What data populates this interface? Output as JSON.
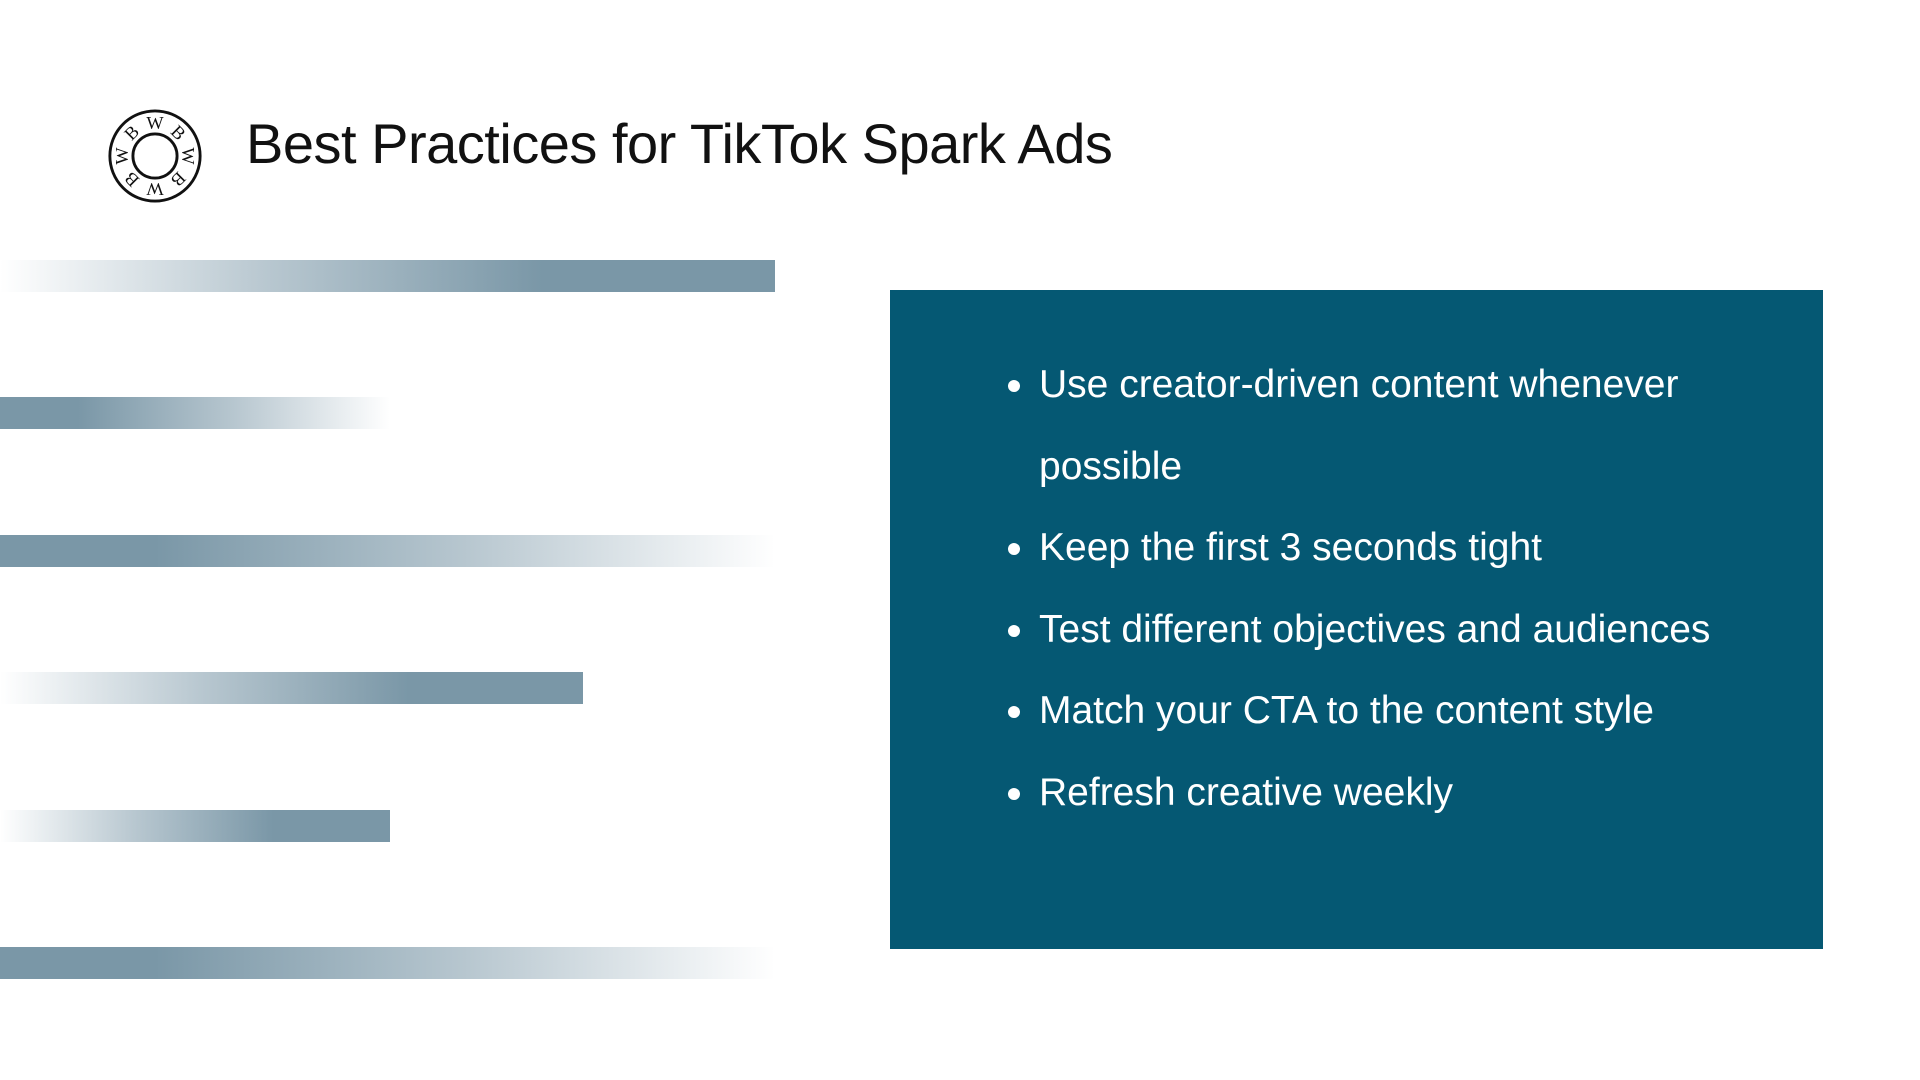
{
  "slide": {
    "title": "Best Practices for TikTok Spark Ads",
    "logo": {
      "icon": "circular-wordmark-logo",
      "letters": "WBWBWBWB",
      "color": "#111111"
    },
    "accent_stripes_color": "#7a97a7",
    "panel": {
      "background": "#055873",
      "text_color": "#ffffff",
      "bullets": [
        {
          "text": "Use creator-driven content whenever possible"
        },
        {
          "text": "Keep the first 3 seconds tight"
        },
        {
          "text": "Test different objectives and audiences"
        },
        {
          "text": "Match your CTA to the content style"
        },
        {
          "text": "Refresh creative weekly"
        }
      ]
    }
  }
}
